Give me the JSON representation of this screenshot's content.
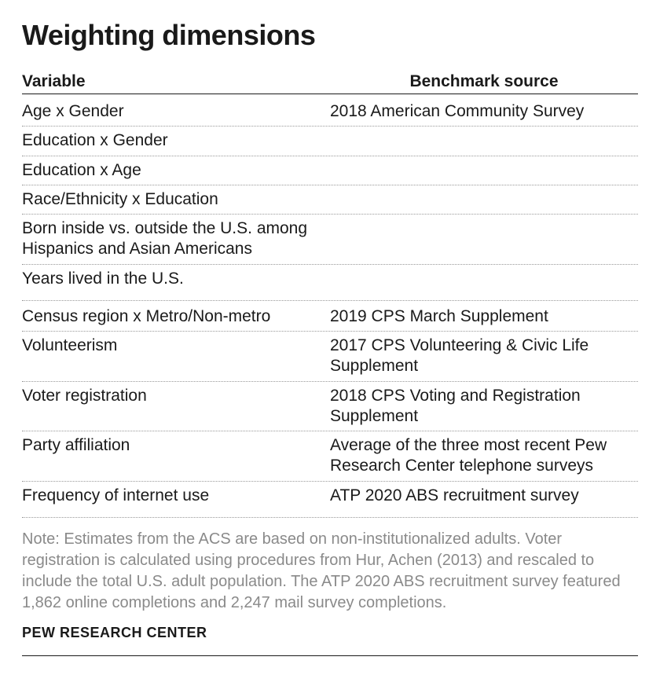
{
  "title": "Weighting dimensions",
  "columns": {
    "variable": "Variable",
    "source": "Benchmark source"
  },
  "group1": {
    "source": "2018 American Community Survey",
    "rows": [
      "Age x Gender",
      "Education x Gender",
      "Education x Age",
      "Race/Ethnicity x Education",
      "Born inside vs. outside the U.S. among Hispanics and Asian Americans",
      "Years lived in the U.S."
    ]
  },
  "rows": [
    {
      "variable": "Census region x Metro/Non-metro",
      "source": "2019 CPS March Supplement"
    },
    {
      "variable": "Volunteerism",
      "source": "2017 CPS Volunteering & Civic Life Supplement"
    },
    {
      "variable": "Voter registration",
      "source": "2018 CPS Voting and Registration Supplement"
    },
    {
      "variable": "Party affiliation",
      "source": "Average of the three most recent Pew Research Center telephone surveys"
    },
    {
      "variable": "Frequency of internet use",
      "source": "ATP 2020 ABS recruitment survey"
    }
  ],
  "note": "Note: Estimates from the ACS are based on non-institutionalized adults. Voter registration is calculated using procedures from Hur, Achen (2013) and rescaled to include the total U.S. adult population. The ATP 2020 ABS recruitment survey featured 1,862 online completions and 2,247 mail survey completions.",
  "sourceLabel": "PEW RESEARCH CENTER",
  "style": {
    "title_fontsize": 36,
    "header_fontsize": 21,
    "body_fontsize": 21,
    "note_fontsize": 20,
    "source_fontsize": 18,
    "text_color": "#1a1a1a",
    "note_color": "#8a8a8a",
    "dotted_color": "#999999",
    "background": "#ffffff"
  }
}
